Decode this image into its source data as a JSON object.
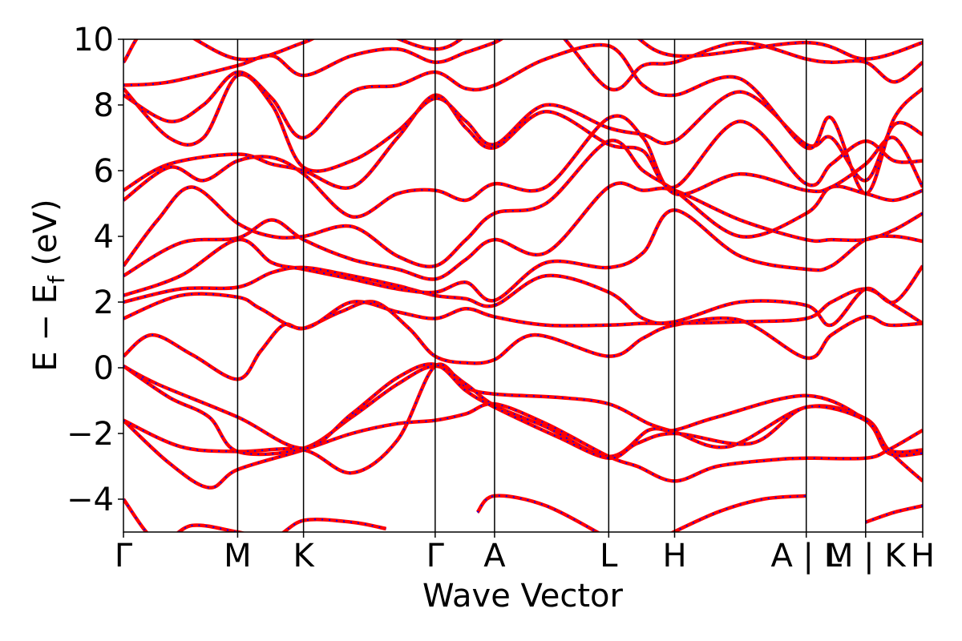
{
  "chart_data": {
    "type": "line",
    "title": "",
    "xlabel": "Wave Vector",
    "ylabel": {
      "main": "E − E",
      "subscript": "f",
      "suffix": " (eV)"
    },
    "ylim": [
      -5,
      10
    ],
    "y_ticks": [
      {
        "value": 10,
        "label": "10"
      },
      {
        "value": 8,
        "label": "8"
      },
      {
        "value": 6,
        "label": "6"
      },
      {
        "value": 4,
        "label": "4"
      },
      {
        "value": 2,
        "label": "2"
      },
      {
        "value": 0,
        "label": "0"
      },
      {
        "value": -2,
        "label": "−2"
      },
      {
        "value": -4,
        "label": "−4"
      }
    ],
    "grid": false,
    "k_path_labels": [
      "Γ",
      "M",
      "K",
      "Γ",
      "A",
      "L",
      "H",
      "A | L",
      "M | K",
      "H"
    ],
    "k_points": [
      0,
      1.0,
      1.577,
      2.73,
      3.25,
      4.25,
      4.827,
      5.98,
      6.5,
      7.0
    ],
    "series_style": [
      {
        "color": "#ff0000",
        "style": "solid"
      },
      {
        "color": "#0000ff",
        "style": "dashed"
      }
    ],
    "bands": [
      [
        [
          0,
          -1.6
        ],
        [
          0.4,
          -2.9
        ],
        [
          0.75,
          -3.65
        ],
        [
          1.0,
          -3.1
        ],
        [
          1.577,
          -2.5
        ],
        [
          2.0,
          -2.0
        ],
        [
          2.4,
          -1.7
        ],
        [
          2.73,
          -1.6
        ],
        [
          3.0,
          -1.4
        ],
        [
          3.25,
          -1.1
        ],
        [
          3.7,
          -1.7
        ],
        [
          4.25,
          -2.7
        ],
        [
          4.5,
          -3.0
        ],
        [
          4.827,
          -3.45
        ],
        [
          5.2,
          -3.0
        ],
        [
          5.7,
          -2.8
        ],
        [
          5.98,
          -2.75
        ],
        [
          6.5,
          -2.75
        ],
        [
          6.7,
          -2.5
        ],
        [
          7.0,
          -1.9
        ]
      ],
      [
        [
          0,
          -1.6
        ],
        [
          0.5,
          -2.4
        ],
        [
          1.0,
          -2.55
        ],
        [
          1.577,
          -2.5
        ],
        [
          2.0,
          -3.2
        ],
        [
          2.4,
          -2.2
        ],
        [
          2.73,
          0.05
        ],
        [
          3.0,
          -0.6
        ],
        [
          3.25,
          -0.8
        ],
        [
          3.8,
          -0.9
        ],
        [
          4.25,
          -1.1
        ],
        [
          4.6,
          -1.7
        ],
        [
          4.827,
          -1.95
        ],
        [
          5.3,
          -2.4
        ],
        [
          5.98,
          -1.2
        ],
        [
          6.5,
          -1.55
        ],
        [
          6.7,
          -2.5
        ],
        [
          7.0,
          -3.45
        ]
      ],
      [
        [
          0,
          0.05
        ],
        [
          0.4,
          -0.9
        ],
        [
          0.75,
          -1.5
        ],
        [
          1.0,
          -2.55
        ],
        [
          1.577,
          -2.45
        ],
        [
          2.0,
          -1.5
        ],
        [
          2.4,
          -0.5
        ],
        [
          2.73,
          0.05
        ],
        [
          3.0,
          -0.5
        ],
        [
          3.25,
          -1.15
        ],
        [
          3.7,
          -1.8
        ],
        [
          4.25,
          -2.7
        ],
        [
          4.6,
          -1.9
        ],
        [
          4.827,
          -1.9
        ],
        [
          5.2,
          -1.5
        ],
        [
          5.98,
          -0.85
        ],
        [
          6.5,
          -1.6
        ],
        [
          6.7,
          -2.6
        ],
        [
          7.0,
          -2.6
        ]
      ],
      [
        [
          0,
          0.05
        ],
        [
          0.3,
          -0.5
        ],
        [
          1.0,
          -1.5
        ],
        [
          1.577,
          -2.45
        ],
        [
          2.0,
          -1.4
        ],
        [
          2.4,
          -0.3
        ],
        [
          2.73,
          0.1
        ],
        [
          3.0,
          -0.7
        ],
        [
          3.25,
          -1.2
        ],
        [
          3.8,
          -2.1
        ],
        [
          4.25,
          -2.75
        ],
        [
          4.5,
          -2.3
        ],
        [
          4.827,
          -2.0
        ],
        [
          5.5,
          -2.3
        ],
        [
          5.98,
          -1.2
        ],
        [
          6.5,
          -1.6
        ],
        [
          6.7,
          -2.5
        ],
        [
          7.0,
          -2.5
        ]
      ],
      [
        [
          0,
          0.35
        ],
        [
          0.25,
          1.0
        ],
        [
          0.6,
          0.4
        ],
        [
          1.0,
          -0.35
        ],
        [
          1.2,
          0.5
        ],
        [
          1.4,
          1.3
        ],
        [
          1.577,
          1.2
        ],
        [
          1.9,
          1.7
        ],
        [
          2.2,
          2.0
        ],
        [
          2.5,
          1.2
        ],
        [
          2.73,
          0.35
        ],
        [
          3.0,
          0.15
        ],
        [
          3.25,
          0.25
        ],
        [
          3.6,
          1.0
        ],
        [
          4.25,
          0.35
        ],
        [
          4.55,
          0.9
        ],
        [
          4.827,
          1.3
        ],
        [
          5.4,
          1.45
        ],
        [
          5.98,
          0.3
        ],
        [
          6.2,
          1.0
        ],
        [
          6.5,
          1.55
        ],
        [
          6.7,
          1.3
        ],
        [
          7.0,
          1.35
        ]
      ],
      [
        [
          0,
          1.5
        ],
        [
          0.5,
          2.2
        ],
        [
          1.0,
          2.15
        ],
        [
          1.2,
          1.8
        ],
        [
          1.577,
          1.2
        ],
        [
          2.0,
          2.0
        ],
        [
          2.4,
          1.7
        ],
        [
          2.73,
          1.5
        ],
        [
          3.0,
          1.8
        ],
        [
          3.25,
          1.55
        ],
        [
          3.7,
          1.3
        ],
        [
          4.25,
          1.3
        ],
        [
          4.55,
          1.35
        ],
        [
          4.827,
          1.35
        ],
        [
          5.4,
          1.4
        ],
        [
          5.98,
          1.5
        ],
        [
          6.2,
          2.0
        ],
        [
          6.5,
          2.4
        ],
        [
          6.75,
          1.9
        ],
        [
          7.0,
          1.35
        ]
      ],
      [
        [
          0,
          2.0
        ],
        [
          0.5,
          2.4
        ],
        [
          1.0,
          2.45
        ],
        [
          1.3,
          2.9
        ],
        [
          1.577,
          3.05
        ],
        [
          2.0,
          2.8
        ],
        [
          2.4,
          2.5
        ],
        [
          2.73,
          2.2
        ],
        [
          3.0,
          2.1
        ],
        [
          3.25,
          1.9
        ],
        [
          3.7,
          2.8
        ],
        [
          4.25,
          2.3
        ],
        [
          4.55,
          1.5
        ],
        [
          4.827,
          1.4
        ],
        [
          5.4,
          2.0
        ],
        [
          5.98,
          1.9
        ],
        [
          6.2,
          1.3
        ],
        [
          6.5,
          2.4
        ],
        [
          6.75,
          2.0
        ],
        [
          7.0,
          3.1
        ]
      ],
      [
        [
          0,
          2.2
        ],
        [
          0.5,
          2.8
        ],
        [
          1.0,
          3.9
        ],
        [
          1.3,
          3.2
        ],
        [
          1.577,
          3.0
        ],
        [
          2.0,
          2.7
        ],
        [
          2.4,
          2.4
        ],
        [
          2.73,
          2.3
        ],
        [
          3.0,
          2.6
        ],
        [
          3.25,
          2.05
        ],
        [
          3.7,
          3.2
        ],
        [
          4.25,
          3.05
        ],
        [
          4.55,
          3.5
        ],
        [
          4.827,
          4.8
        ],
        [
          5.4,
          3.4
        ],
        [
          5.98,
          3.0
        ],
        [
          6.2,
          3.1
        ],
        [
          6.5,
          3.9
        ],
        [
          6.75,
          4.0
        ],
        [
          7.0,
          3.85
        ]
      ],
      [
        [
          0,
          2.8
        ],
        [
          0.5,
          3.8
        ],
        [
          1.0,
          3.95
        ],
        [
          1.3,
          4.5
        ],
        [
          1.577,
          3.9
        ],
        [
          2.0,
          3.3
        ],
        [
          2.4,
          3.0
        ],
        [
          2.73,
          2.7
        ],
        [
          3.0,
          3.3
        ],
        [
          3.25,
          3.9
        ],
        [
          3.7,
          3.5
        ],
        [
          4.25,
          5.5
        ],
        [
          4.55,
          5.4
        ],
        [
          4.827,
          5.4
        ],
        [
          5.4,
          4.5
        ],
        [
          5.98,
          3.9
        ],
        [
          6.2,
          3.9
        ],
        [
          6.5,
          3.9
        ],
        [
          6.75,
          4.2
        ],
        [
          7.0,
          4.7
        ]
      ],
      [
        [
          0,
          3.1
        ],
        [
          0.3,
          4.5
        ],
        [
          0.6,
          5.5
        ],
        [
          1.0,
          4.4
        ],
        [
          1.3,
          4.0
        ],
        [
          1.577,
          4.0
        ],
        [
          2.0,
          4.3
        ],
        [
          2.4,
          3.4
        ],
        [
          2.73,
          3.1
        ],
        [
          3.0,
          3.9
        ],
        [
          3.25,
          4.7
        ],
        [
          3.7,
          5.0
        ],
        [
          4.25,
          6.9
        ],
        [
          4.55,
          6.0
        ],
        [
          4.827,
          5.4
        ],
        [
          5.4,
          4.0
        ],
        [
          5.98,
          4.7
        ],
        [
          6.2,
          5.5
        ],
        [
          6.5,
          5.3
        ],
        [
          6.75,
          5.1
        ],
        [
          7.0,
          5.4
        ]
      ],
      [
        [
          0,
          5.1
        ],
        [
          0.4,
          6.1
        ],
        [
          0.7,
          5.7
        ],
        [
          1.0,
          6.3
        ],
        [
          1.3,
          6.4
        ],
        [
          1.577,
          5.9
        ],
        [
          2.0,
          4.6
        ],
        [
          2.4,
          5.3
        ],
        [
          2.73,
          5.4
        ],
        [
          3.0,
          5.1
        ],
        [
          3.25,
          5.6
        ],
        [
          3.7,
          5.5
        ],
        [
          4.25,
          7.6
        ],
        [
          4.55,
          7.0
        ],
        [
          4.827,
          5.3
        ],
        [
          5.4,
          5.9
        ],
        [
          5.98,
          5.4
        ],
        [
          6.2,
          5.5
        ],
        [
          6.5,
          6.2
        ],
        [
          6.75,
          7.0
        ],
        [
          7.0,
          5.5
        ]
      ],
      [
        [
          0,
          5.4
        ],
        [
          0.4,
          6.2
        ],
        [
          1.0,
          6.5
        ],
        [
          1.3,
          6.2
        ],
        [
          1.577,
          6.0
        ],
        [
          2.0,
          5.5
        ],
        [
          2.4,
          7.0
        ],
        [
          2.73,
          8.3
        ],
        [
          3.0,
          7.3
        ],
        [
          3.25,
          6.7
        ],
        [
          3.7,
          7.8
        ],
        [
          4.25,
          6.8
        ],
        [
          4.55,
          6.6
        ],
        [
          4.827,
          5.5
        ],
        [
          5.4,
          7.5
        ],
        [
          5.98,
          5.6
        ],
        [
          6.2,
          6.2
        ],
        [
          6.5,
          6.9
        ],
        [
          6.75,
          6.3
        ],
        [
          7.0,
          6.3
        ]
      ],
      [
        [
          0,
          8.5
        ],
        [
          0.4,
          7.0
        ],
        [
          0.7,
          7.0
        ],
        [
          1.0,
          8.9
        ],
        [
          1.3,
          8.0
        ],
        [
          1.577,
          6.1
        ],
        [
          2.0,
          6.3
        ],
        [
          2.4,
          7.2
        ],
        [
          2.73,
          8.2
        ],
        [
          3.0,
          7.5
        ],
        [
          3.25,
          6.8
        ],
        [
          3.7,
          8.0
        ],
        [
          4.25,
          7.3
        ],
        [
          4.55,
          7.1
        ],
        [
          4.827,
          6.9
        ],
        [
          5.4,
          8.4
        ],
        [
          5.98,
          6.8
        ],
        [
          6.2,
          7.0
        ],
        [
          6.5,
          5.7
        ],
        [
          6.75,
          7.4
        ],
        [
          7.0,
          7.1
        ]
      ],
      [
        [
          0,
          8.3
        ],
        [
          0.4,
          7.5
        ],
        [
          0.7,
          8.0
        ],
        [
          1.0,
          9.0
        ],
        [
          1.3,
          8.2
        ],
        [
          1.577,
          7.0
        ],
        [
          2.0,
          8.4
        ],
        [
          2.4,
          8.6
        ],
        [
          2.73,
          9.0
        ],
        [
          3.0,
          8.5
        ],
        [
          3.25,
          8.6
        ],
        [
          3.7,
          9.4
        ],
        [
          4.25,
          9.8
        ],
        [
          4.55,
          8.6
        ],
        [
          4.827,
          8.3
        ],
        [
          5.4,
          8.8
        ],
        [
          5.98,
          6.7
        ],
        [
          6.2,
          7.6
        ],
        [
          6.5,
          5.3
        ],
        [
          6.75,
          7.6
        ],
        [
          7.0,
          8.5
        ]
      ],
      [
        [
          0,
          8.6
        ],
        [
          0.4,
          8.7
        ],
        [
          1.0,
          9.2
        ],
        [
          1.3,
          9.5
        ],
        [
          1.577,
          8.9
        ],
        [
          2.0,
          9.5
        ],
        [
          2.4,
          9.7
        ],
        [
          2.73,
          9.3
        ],
        [
          3.0,
          9.6
        ],
        [
          3.25,
          9.9
        ],
        [
          3.7,
          10.5
        ],
        [
          4.25,
          8.5
        ],
        [
          4.55,
          9.2
        ],
        [
          4.827,
          9.3
        ],
        [
          5.4,
          9.9
        ],
        [
          5.98,
          9.4
        ],
        [
          6.2,
          9.3
        ],
        [
          6.5,
          9.3
        ],
        [
          6.75,
          8.7
        ],
        [
          7.0,
          9.3
        ]
      ],
      [
        [
          0,
          9.3
        ],
        [
          0.3,
          10.5
        ],
        [
          1.0,
          9.4
        ],
        [
          1.577,
          9.9
        ],
        [
          2.0,
          10.5
        ],
        [
          2.73,
          9.7
        ],
        [
          3.25,
          10.5
        ],
        [
          4.25,
          10.5
        ],
        [
          4.827,
          9.5
        ],
        [
          5.98,
          9.9
        ],
        [
          6.5,
          9.4
        ],
        [
          7.0,
          9.9
        ]
      ],
      [
        [
          0,
          -4.0
        ],
        [
          0.3,
          -5.3
        ],
        [
          0.6,
          -4.8
        ],
        [
          1.0,
          -5.0
        ],
        [
          1.3,
          -5.2
        ],
        [
          1.577,
          -4.65
        ],
        [
          2.0,
          -4.7
        ],
        [
          2.3,
          -4.9
        ]
      ],
      [
        [
          3.1,
          -4.4
        ],
        [
          3.25,
          -3.9
        ],
        [
          3.7,
          -4.2
        ],
        [
          4.25,
          -5.2
        ]
      ],
      [
        [
          4.7,
          -5.2
        ],
        [
          5.2,
          -4.4
        ],
        [
          5.6,
          -4.0
        ],
        [
          5.98,
          -3.9
        ]
      ],
      [
        [
          6.5,
          -4.7
        ],
        [
          6.75,
          -4.4
        ],
        [
          7.0,
          -4.2
        ]
      ]
    ]
  }
}
